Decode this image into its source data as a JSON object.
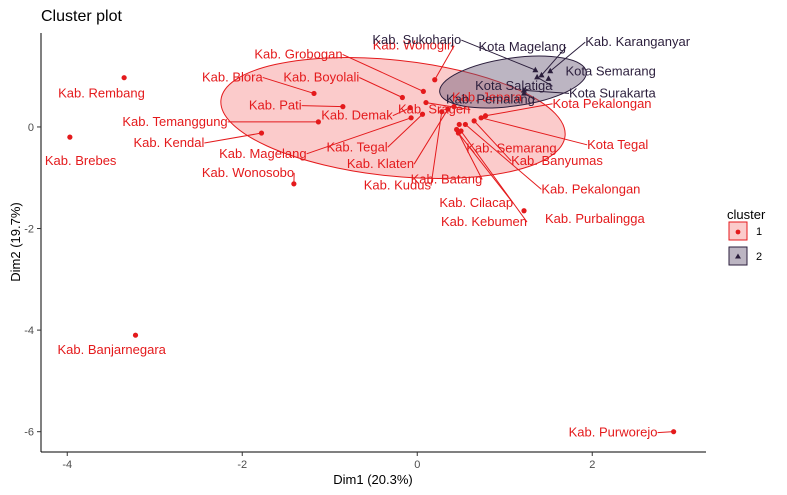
{
  "chart_data": {
    "type": "scatter",
    "title": "Cluster plot",
    "xlabel": "Dim1 (20.3%)",
    "ylabel": "Dim2 (19.7%)",
    "xlim": [
      -4.3,
      3.3
    ],
    "ylim": [
      -6.4,
      1.85
    ],
    "x_ticks": [
      -4,
      -2,
      0,
      2
    ],
    "y_ticks": [
      -6,
      -4,
      -2,
      0
    ],
    "grid": false,
    "legend": {
      "title": "cluster",
      "position": "right",
      "entries": [
        "1",
        "2"
      ]
    },
    "colors": {
      "1": "#e41a1c",
      "2": "#2b1e3c"
    },
    "ellipse_fill": {
      "1": "#f8a0a0",
      "2": "#6b5b78"
    },
    "series": [
      {
        "name": "1",
        "points": [
          {
            "label": "Kab. Rembang",
            "x": -3.35,
            "y": 0.97
          },
          {
            "label": "Kab. Brebes",
            "x": -3.97,
            "y": -0.2
          },
          {
            "label": "Kab. Banjarnegara",
            "x": -3.22,
            "y": -4.1
          },
          {
            "label": "Kab. Purworejo",
            "x": 2.93,
            "y": -6.0
          },
          {
            "label": "Kab. Wonosobo",
            "x": -1.41,
            "y": -1.12
          },
          {
            "label": "Kab. Kendal",
            "x": -1.78,
            "y": -0.12
          },
          {
            "label": "Kab. Temanggung",
            "x": -1.13,
            "y": 0.1
          },
          {
            "label": "Kab. Pati",
            "x": -0.85,
            "y": 0.4
          },
          {
            "label": "Kab. Blora",
            "x": -1.18,
            "y": 0.66
          },
          {
            "label": "Kab. Grobogan",
            "x": 0.07,
            "y": 0.7
          },
          {
            "label": "Kab. Boyolali",
            "x": -0.17,
            "y": 0.58
          },
          {
            "label": "Kab. Wonogiri",
            "x": 0.2,
            "y": 0.93
          },
          {
            "label": "Kab. Sragen",
            "x": 0.1,
            "y": 0.48
          },
          {
            "label": "Kab. Demak",
            "x": -0.08,
            "y": 0.38
          },
          {
            "label": "Kab. Magelang",
            "x": -0.07,
            "y": 0.18
          },
          {
            "label": "Kab. Tegal",
            "x": 0.06,
            "y": 0.25
          },
          {
            "label": "Kab. Klaten",
            "x": 0.35,
            "y": 0.35
          },
          {
            "label": "Kab. Kudus",
            "x": 0.28,
            "y": 0.3
          },
          {
            "label": "Kab. Jepara",
            "x": 0.42,
            "y": 0.4
          },
          {
            "label": "Kab. Batang",
            "x": 0.45,
            "y": -0.05
          },
          {
            "label": "Kab. Semarang",
            "x": 0.48,
            "y": 0.05
          },
          {
            "label": "Kab. Cilacap",
            "x": 0.47,
            "y": -0.12
          },
          {
            "label": "Kab. Kebumen",
            "x": 0.5,
            "y": -0.08
          },
          {
            "label": "Kab. Banyumas",
            "x": 0.65,
            "y": 0.12
          },
          {
            "label": "Kab. Pekalongan",
            "x": 0.55,
            "y": 0.05
          },
          {
            "label": "Kab. Purbalingga",
            "x": 1.22,
            "y": -1.65
          },
          {
            "label": "Kota Pekalongan",
            "x": 0.78,
            "y": 0.22
          },
          {
            "label": "Kota Tegal",
            "x": 0.73,
            "y": 0.18
          }
        ]
      },
      {
        "name": "2",
        "points": [
          {
            "label": "Kab. Sukoharjo",
            "x": 1.35,
            "y": 1.12
          },
          {
            "label": "Kota Magelang",
            "x": 1.42,
            "y": 1.02
          },
          {
            "label": "Kab. Karanganyar",
            "x": 1.52,
            "y": 1.1
          },
          {
            "label": "Kota Semarang",
            "x": 1.5,
            "y": 0.95
          },
          {
            "label": "Kota Salatiga",
            "x": 1.37,
            "y": 0.98
          },
          {
            "label": "Kab. Pemalang",
            "x": 1.22,
            "y": 0.66
          },
          {
            "label": "Kota Surakarta",
            "x": 1.22,
            "y": 0.72
          }
        ]
      }
    ]
  }
}
